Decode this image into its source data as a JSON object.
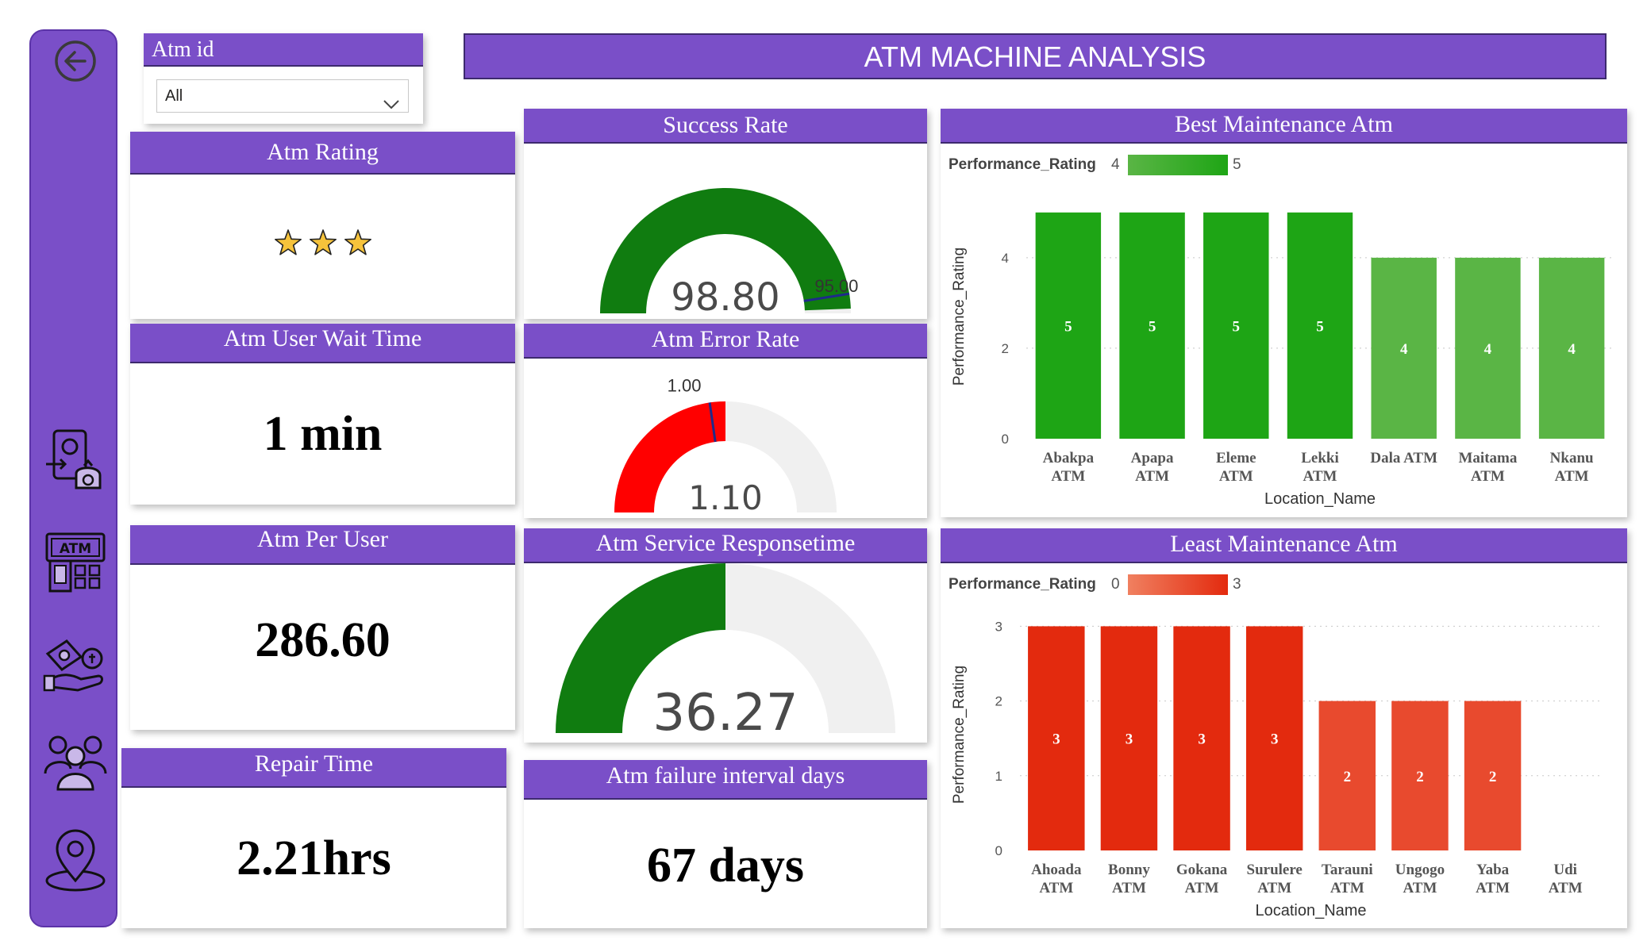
{
  "colors": {
    "accent": "#7a4fc8",
    "gauge_green": "#107c10",
    "gauge_red": "#ff0000",
    "gauge_track": "#f0f0f0",
    "bar_green_dark": "#1ea515",
    "bar_green_light": "#5ab545",
    "bar_red_dark": "#e32a0e",
    "bar_red_light": "#e84a2e"
  },
  "sidebar": {
    "icons": [
      "back-arrow-icon",
      "money-transfer-icon",
      "atm-machine-icon",
      "cash-hand-icon",
      "users-group-icon",
      "location-pin-icon"
    ],
    "atm_icon_text": "ATM"
  },
  "slicer": {
    "title": "Atm id",
    "value": "All"
  },
  "banner": {
    "title": "ATM MACHINE ANALYSIS"
  },
  "atm_rating": {
    "title": "Atm Rating",
    "stars": 3
  },
  "success_rate": {
    "title": "Success Rate",
    "value": 98.8,
    "value_label": "98.80",
    "target": 95.0,
    "target_label": "95.00",
    "max": 100
  },
  "wait_time": {
    "title": "Atm User Wait Time",
    "value": "1 min"
  },
  "error_rate": {
    "title": "Atm Error Rate",
    "value": 1.1,
    "value_label": "1.10",
    "target": 1.0,
    "target_label": "1.00",
    "max": 2.2
  },
  "per_user": {
    "title": "Atm Per User",
    "value": "286.60"
  },
  "response_time": {
    "title": "Atm Service Responsetime",
    "value": 36.27,
    "value_label": "36.27",
    "max": 72.54
  },
  "repair_time": {
    "title": "Repair Time",
    "value": "2.21hrs"
  },
  "failure_interval": {
    "title": "Atm failure interval days",
    "value": "67 days"
  },
  "chart_data": [
    {
      "type": "bar",
      "title": "Best Maintenance Atm",
      "xlabel": "Location_Name",
      "ylabel": "Performance_Rating",
      "legend_label": "Performance_Rating",
      "legend_min": "4",
      "legend_max": "5",
      "categories": [
        "Abakpa ATM",
        "Apapa ATM",
        "Eleme ATM",
        "Lekki ATM",
        "Dala ATM",
        "Maitama ATM",
        "Nkanu ATM"
      ],
      "values": [
        5,
        5,
        5,
        5,
        4,
        4,
        4
      ],
      "yticks": [
        0,
        2,
        4
      ],
      "ylim": [
        0,
        5.4
      ],
      "grid": true
    },
    {
      "type": "bar",
      "title": "Least Maintenance Atm",
      "xlabel": "Location_Name",
      "ylabel": "Performance_Rating",
      "legend_label": "Performance_Rating",
      "legend_min": "0",
      "legend_max": "3",
      "categories": [
        "Ahoada ATM",
        "Bonny ATM",
        "Gokana ATM",
        "Surulere ATM",
        "Tarauni ATM",
        "Ungogo ATM",
        "Yaba ATM",
        "Udi ATM"
      ],
      "values": [
        3,
        3,
        3,
        3,
        2,
        2,
        2,
        0
      ],
      "yticks": [
        0,
        1,
        2,
        3
      ],
      "ylim": [
        0,
        3.1
      ],
      "grid": true
    }
  ]
}
